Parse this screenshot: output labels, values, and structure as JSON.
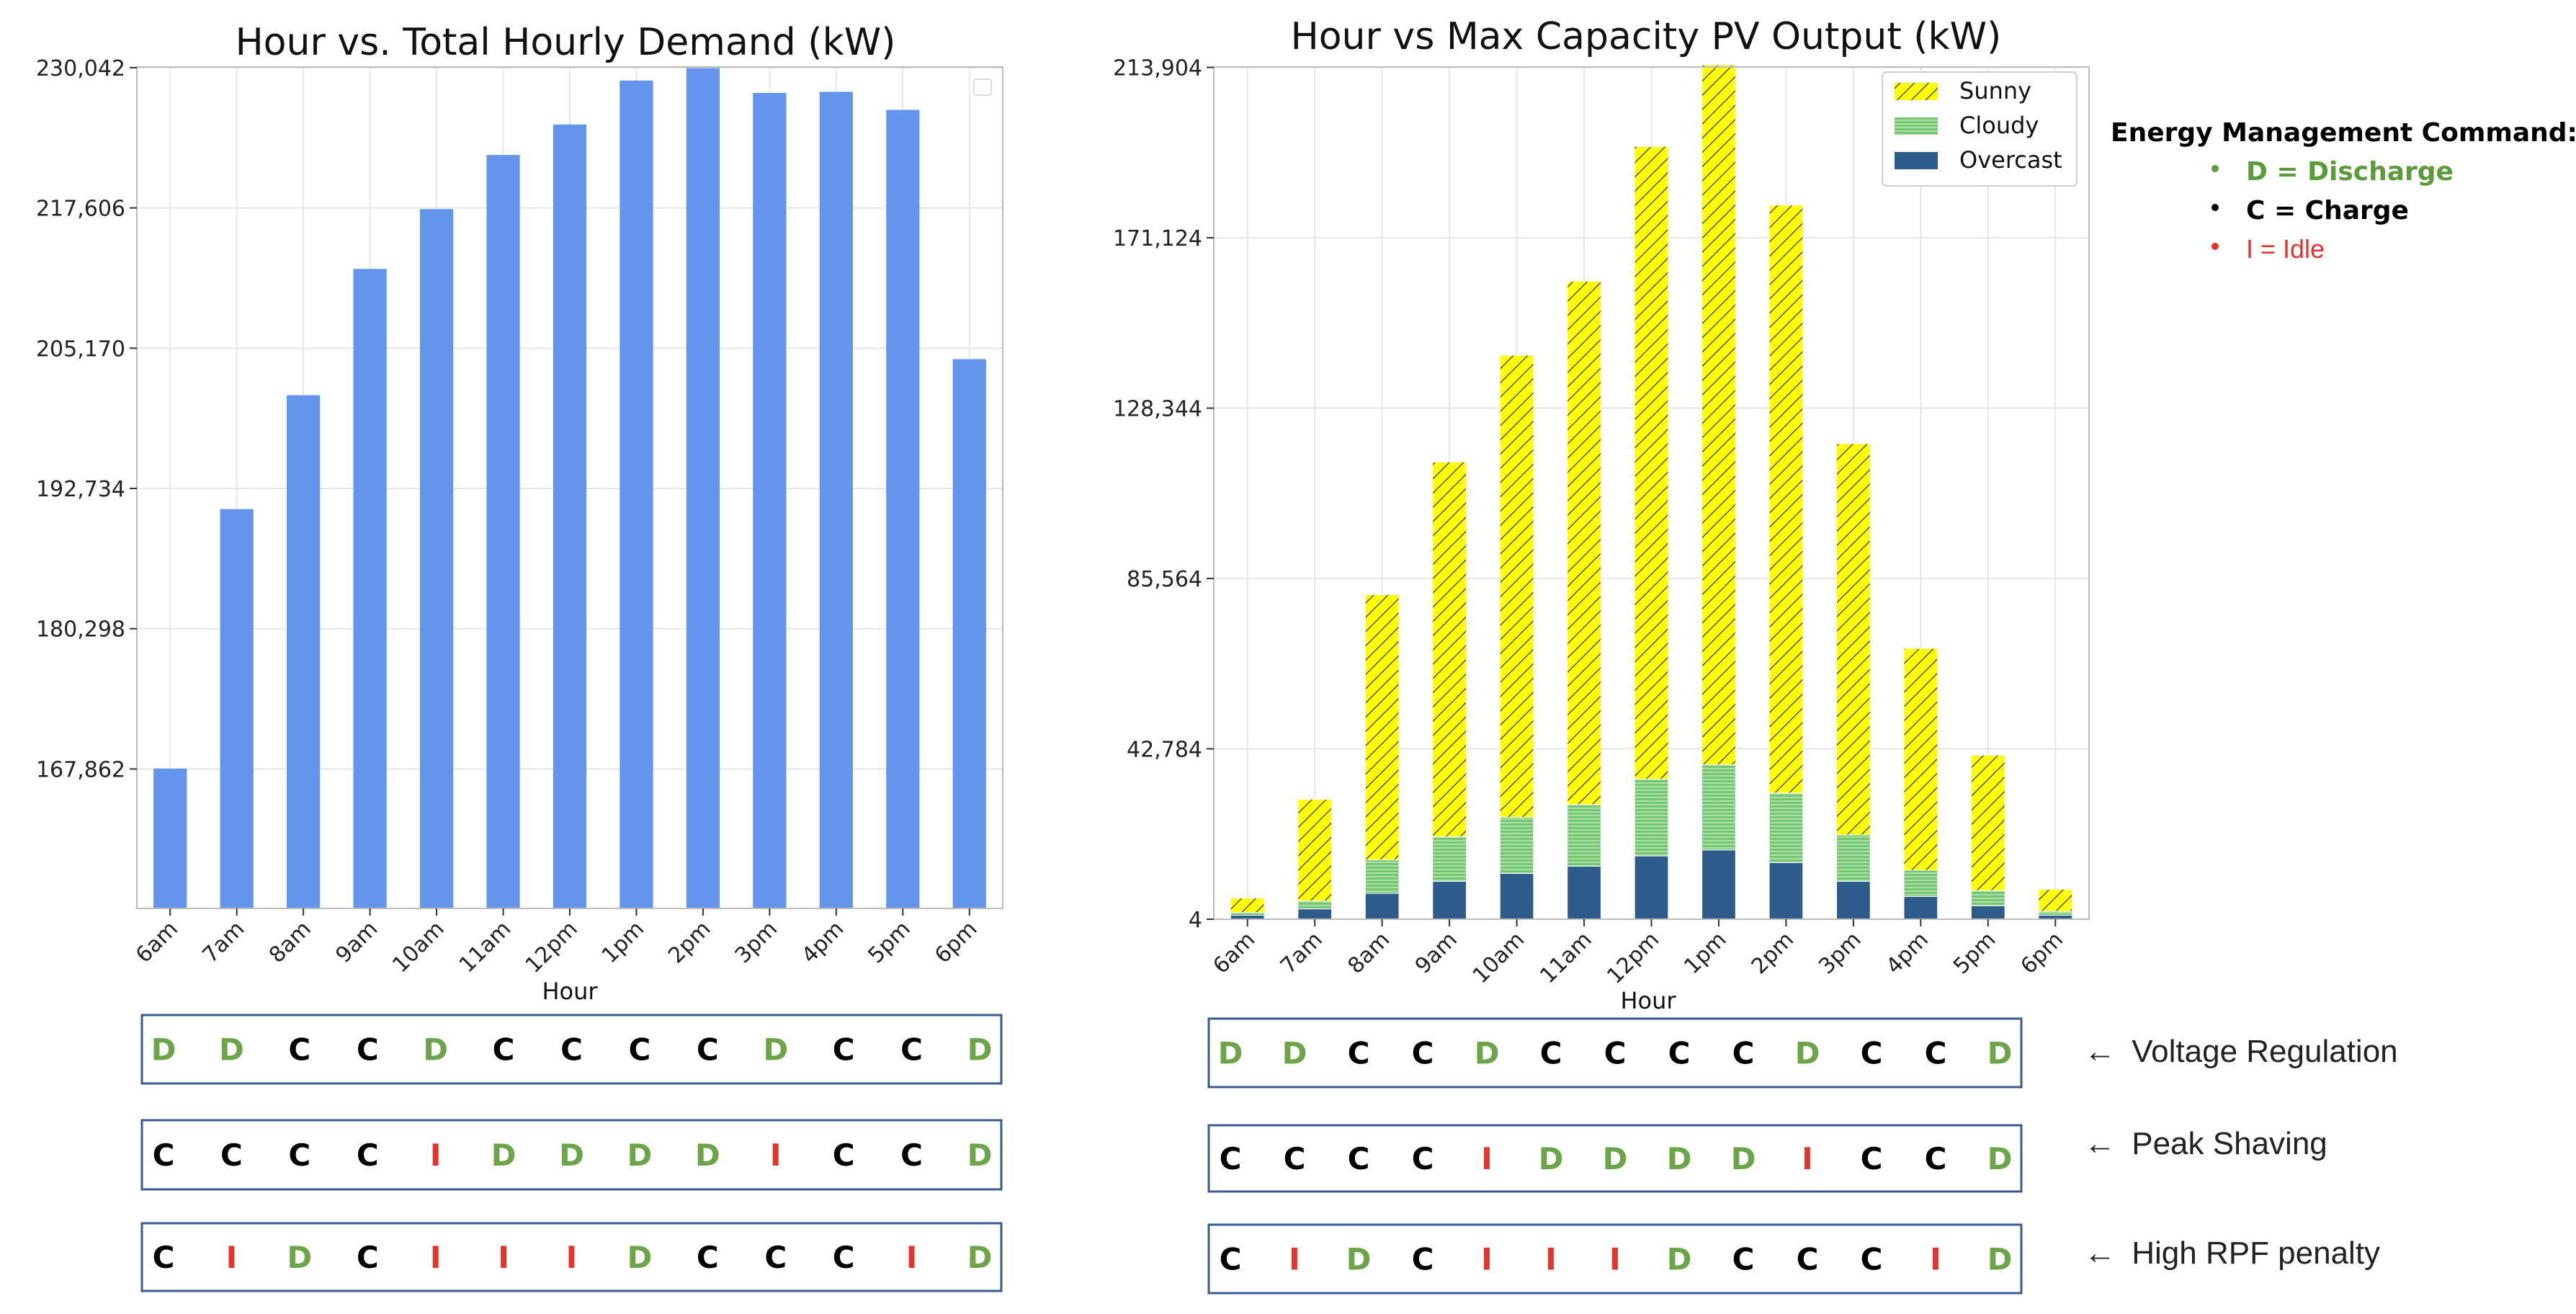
{
  "chart_data": [
    {
      "type": "bar",
      "title": "Hour vs. Total Hourly Demand (kW)",
      "xlabel": "Hour",
      "ylabel": "",
      "categories": [
        "6am",
        "7am",
        "8am",
        "9am",
        "10am",
        "11am",
        "12pm",
        "1pm",
        "2pm",
        "3pm",
        "4pm",
        "5pm",
        "6pm"
      ],
      "values": [
        167900,
        190900,
        201000,
        212200,
        217500,
        222300,
        225000,
        228900,
        230000,
        227800,
        227900,
        226300,
        204200
      ],
      "ylim": [
        155500,
        230100
      ],
      "yticks": [
        167862,
        180298,
        192734,
        205170,
        217606,
        230042
      ],
      "ytick_labels": [
        "167,862",
        "180,298",
        "192,734",
        "205,170",
        "217,606",
        "230,042"
      ],
      "grid": true,
      "colors": {
        "bar": "#6495ED"
      },
      "command_rows": [
        [
          "D",
          "D",
          "C",
          "C",
          "D",
          "C",
          "C",
          "C",
          "C",
          "D",
          "C",
          "C",
          "D"
        ],
        [
          "C",
          "C",
          "C",
          "C",
          "I",
          "D",
          "D",
          "D",
          "D",
          "I",
          "C",
          "C",
          "D"
        ],
        [
          "C",
          "I",
          "D",
          "C",
          "I",
          "I",
          "I",
          "D",
          "C",
          "C",
          "C",
          "I",
          "D"
        ]
      ]
    },
    {
      "type": "bar",
      "stacked": true,
      "title": "Hour vs Max Capacity PV Output (kW)",
      "xlabel": "Hour",
      "ylabel": "",
      "categories": [
        "6am",
        "7am",
        "8am",
        "9am",
        "10am",
        "11am",
        "12pm",
        "1pm",
        "2pm",
        "3pm",
        "4pm",
        "5pm",
        "6pm"
      ],
      "series": [
        {
          "name": "Overcast",
          "values": [
            1000,
            2600,
            6500,
            9500,
            11500,
            13300,
            15900,
            17400,
            14200,
            9500,
            5700,
            3400,
            1000
          ]
        },
        {
          "name": "Cloudy",
          "values": [
            700,
            2000,
            8400,
            11200,
            14100,
            15500,
            19300,
            21400,
            17500,
            11700,
            6600,
            3800,
            1000
          ]
        },
        {
          "name": "Sunny",
          "values": [
            3600,
            25500,
            66600,
            94100,
            116000,
            131400,
            158800,
            175700,
            147600,
            98200,
            55700,
            34000,
            5500
          ]
        }
      ],
      "ylim": [
        4,
        214000
      ],
      "yticks": [
        4,
        42784,
        85564,
        128344,
        171124,
        213904
      ],
      "ytick_labels": [
        "4",
        "42,784",
        "85,564",
        "128,344",
        "171,124",
        "213,904"
      ],
      "grid": true,
      "legend": "top-right",
      "colors": {
        "Sunny": "#FFFF00",
        "Sunny_hatch": "#1a1a1a",
        "Cloudy": "#7CCB7C",
        "Cloudy_hatch": "#A7DFA0",
        "Overcast": "#2E5C8A"
      },
      "command_rows": [
        [
          "D",
          "D",
          "C",
          "C",
          "D",
          "C",
          "C",
          "C",
          "C",
          "D",
          "C",
          "C",
          "D"
        ],
        [
          "C",
          "C",
          "C",
          "C",
          "I",
          "D",
          "D",
          "D",
          "D",
          "I",
          "C",
          "C",
          "D"
        ],
        [
          "C",
          "I",
          "D",
          "C",
          "I",
          "I",
          "I",
          "D",
          "C",
          "C",
          "C",
          "I",
          "D"
        ]
      ]
    }
  ],
  "energy_legend": {
    "title": "Energy Management Command:",
    "items": [
      {
        "text": "D = Discharge",
        "color": "#5B9B3A"
      },
      {
        "text": "C = Charge",
        "color": "#000000"
      },
      {
        "text": "I = Idle",
        "color": "#E8322C"
      }
    ]
  },
  "command_colors": {
    "D": "#6BA547",
    "C": "#000000",
    "I": "#E8322C"
  },
  "row_labels": [
    "Voltage Regulation",
    "Peak Shaving",
    "High RPF penalty"
  ],
  "arrow_glyph": "←"
}
